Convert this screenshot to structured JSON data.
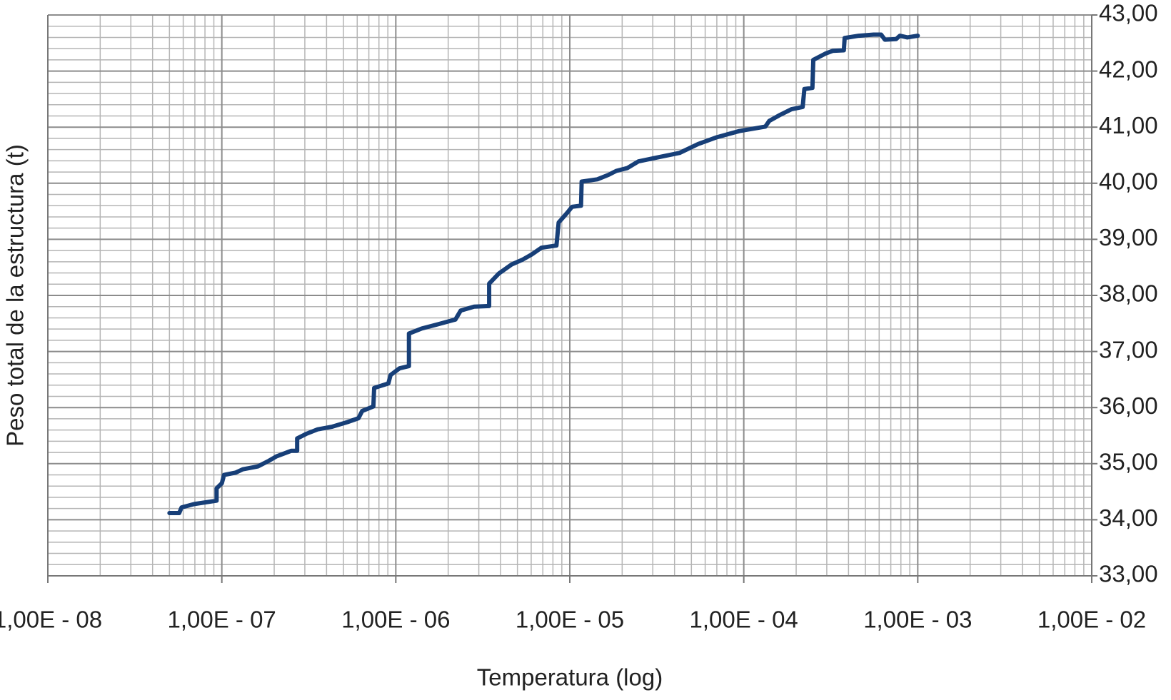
{
  "chart_data": {
    "type": "line",
    "xlabel": "Temperatura (log)",
    "ylabel": "Peso total de la estructura (t)",
    "xscale": "log",
    "grid": true,
    "minor_grid": true,
    "y_axis_side": "right",
    "xlim": [
      1e-08,
      0.01
    ],
    "ylim": [
      33,
      43
    ],
    "xticks": [
      {
        "value": 1e-08,
        "label": "1,00E - 08"
      },
      {
        "value": 1e-07,
        "label": "1,00E - 07"
      },
      {
        "value": 1e-06,
        "label": "1,00E - 06"
      },
      {
        "value": 1e-05,
        "label": "1,00E - 05"
      },
      {
        "value": 0.0001,
        "label": "1,00E - 04"
      },
      {
        "value": 0.001,
        "label": "1,00E - 03"
      },
      {
        "value": 0.01,
        "label": "1,00E - 02"
      }
    ],
    "yticks": [
      {
        "value": 33,
        "label": "33,00"
      },
      {
        "value": 34,
        "label": "34,00"
      },
      {
        "value": 35,
        "label": "35,00"
      },
      {
        "value": 36,
        "label": "36,00"
      },
      {
        "value": 37,
        "label": "37,00"
      },
      {
        "value": 38,
        "label": "38,00"
      },
      {
        "value": 39,
        "label": "39,00"
      },
      {
        "value": 40,
        "label": "40,00"
      },
      {
        "value": 41,
        "label": "41,00"
      },
      {
        "value": 42,
        "label": "42,00"
      },
      {
        "value": 43,
        "label": "43,00"
      }
    ],
    "x": [
      5e-08,
      5.69e-08,
      5.87e-08,
      6.94e-08,
      8.89e-08,
      9.33e-08,
      9.33e-08,
      1e-07,
      1.03e-07,
      1.2e-07,
      1.32e-07,
      1.61e-07,
      1.86e-07,
      2.06e-07,
      2.51e-07,
      2.71e-07,
      2.71e-07,
      3.05e-07,
      3.54e-07,
      4.32e-07,
      5.26e-07,
      6.1e-07,
      6.41e-07,
      7.43e-07,
      7.51e-07,
      9.06e-07,
      9.33e-07,
      1.05e-06,
      1.19e-06,
      1.19e-06,
      1.41e-06,
      1.72e-06,
      2.2e-06,
      2.36e-06,
      2.82e-06,
      3.44e-06,
      3.44e-06,
      3.91e-06,
      4.62e-06,
      5.37e-06,
      6.04e-06,
      6.87e-06,
      8.38e-06,
      8.63e-06,
      9.71e-06,
      1.03e-05,
      1.16e-05,
      1.17e-05,
      1.44e-05,
      1.67e-05,
      1.85e-05,
      2.14e-05,
      2.48e-05,
      3.18e-05,
      4.27e-05,
      5.47e-05,
      7e-05,
      9.42e-05,
      0.000133,
      0.00014,
      0.000162,
      0.000188,
      0.000218,
      0.000223,
      0.000248,
      0.000251,
      0.000294,
      0.000324,
      0.000376,
      0.00038,
      0.000458,
      0.000558,
      0.000616,
      0.000647,
      0.000751,
      0.000789,
      0.000871,
      0.001
    ],
    "series": [
      {
        "color": "#173f78",
        "values": [
          34.12,
          34.12,
          34.22,
          34.28,
          34.33,
          34.34,
          34.56,
          34.65,
          34.8,
          34.84,
          34.9,
          34.95,
          35.05,
          35.13,
          35.23,
          35.23,
          35.45,
          35.53,
          35.61,
          35.66,
          35.74,
          35.81,
          35.94,
          36.02,
          36.35,
          36.43,
          36.58,
          36.7,
          36.74,
          37.32,
          37.41,
          37.48,
          37.57,
          37.73,
          37.8,
          37.81,
          38.21,
          38.39,
          38.55,
          38.64,
          38.73,
          38.85,
          38.89,
          39.3,
          39.48,
          39.58,
          39.6,
          40.03,
          40.07,
          40.15,
          40.22,
          40.27,
          40.39,
          40.46,
          40.54,
          40.7,
          40.82,
          40.93,
          41.01,
          41.11,
          41.22,
          41.32,
          41.36,
          41.68,
          41.7,
          42.2,
          42.31,
          42.36,
          42.37,
          42.59,
          42.63,
          42.65,
          42.65,
          42.56,
          42.57,
          42.63,
          42.6,
          42.63
        ]
      }
    ]
  }
}
